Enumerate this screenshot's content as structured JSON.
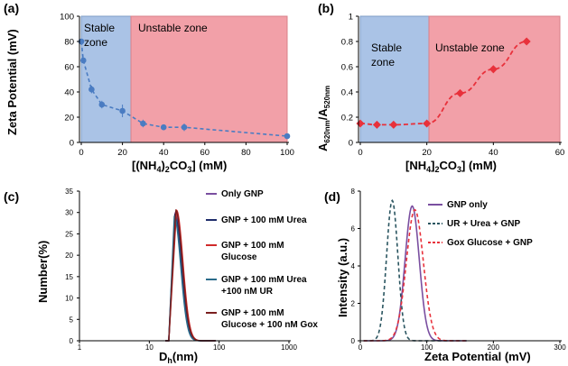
{
  "panels": {
    "a": {
      "label": "(a)"
    },
    "b": {
      "label": "(b)"
    },
    "c": {
      "label": "(c)"
    },
    "d": {
      "label": "(d)"
    }
  },
  "chart_data": [
    {
      "panel": "(a)",
      "type": "line",
      "xlabel": "[(NH4)2CO3] (mM)",
      "ylabel": "Zeta Potential (mV)",
      "xlim": [
        0,
        100
      ],
      "ylim": [
        0,
        100
      ],
      "xticks": [
        "0",
        "20",
        "40",
        "60",
        "80",
        "100"
      ],
      "yticks": [
        "0",
        "20",
        "40",
        "60",
        "80",
        "100"
      ],
      "x": [
        0,
        1,
        5,
        10,
        20,
        30,
        40,
        50,
        100
      ],
      "values": [
        80,
        65,
        42,
        30,
        25,
        15,
        12,
        12,
        5
      ],
      "errors": [
        2,
        2,
        3,
        3,
        5,
        3,
        2,
        3,
        1
      ],
      "zones": [
        {
          "label": "Stable zone",
          "from": 0,
          "to": 23,
          "color": "#aac3e6"
        },
        {
          "label": "Unstable zone",
          "from": 23,
          "to": 100,
          "color": "#f2a0a8"
        }
      ],
      "series_color": "#4a7cc2"
    },
    {
      "panel": "(b)",
      "type": "line",
      "xlabel": "[NH4]2CO3] (mM)",
      "ylabel": "A620nm/A520nm",
      "xlim": [
        0,
        60
      ],
      "ylim": [
        0,
        1
      ],
      "xticks": [
        "0",
        "20",
        "40",
        "60"
      ],
      "yticks": [
        "0",
        "0.2",
        "0.4",
        "0.6",
        "0.8",
        "1"
      ],
      "x": [
        0,
        5,
        10,
        20,
        30,
        40,
        50
      ],
      "values": [
        0.15,
        0.14,
        0.14,
        0.15,
        0.39,
        0.58,
        0.8
      ],
      "zones": [
        {
          "label": "Stable zone",
          "from": 0,
          "to": 21,
          "color": "#aac3e6"
        },
        {
          "label": "Unstable zone",
          "from": 21,
          "to": 60,
          "color": "#f2a0a8"
        }
      ],
      "series_color": "#e8313b"
    },
    {
      "panel": "(c)",
      "type": "line",
      "xlabel": "Dh(nm)",
      "ylabel": "Number(%)",
      "xscale": "log",
      "xlim": [
        1,
        1000
      ],
      "ylim": [
        0,
        35
      ],
      "xticks": [
        "1",
        "10",
        "100",
        "1000"
      ],
      "yticks": [
        "0",
        "5",
        "10",
        "15",
        "20",
        "25",
        "30",
        "35"
      ],
      "series": [
        {
          "name": "Only GNP",
          "color": "#7a4fa0",
          "peak": 23.5,
          "height": 30
        },
        {
          "name": "GNP + 100 mM Urea",
          "color": "#1f2d6b",
          "peak": 23.2,
          "height": 29.5
        },
        {
          "name": "GNP + 100 mM Glucose",
          "color": "#d02a2a",
          "peak": 24.5,
          "height": 30.5
        },
        {
          "name": "GNP + 100 mM Urea +100 nM UR",
          "color": "#2a6b8a",
          "peak": 22.8,
          "height": 29
        },
        {
          "name": "GNP + 100 mM Glucose + 100 nM Gox",
          "color": "#7a1f1f",
          "peak": 24,
          "height": 30.5
        }
      ]
    },
    {
      "panel": "(d)",
      "type": "line",
      "xlabel": "Zeta Potential (mV)",
      "ylabel": "Intensity (a.u.)",
      "xlim": [
        0,
        300
      ],
      "ylim": [
        0,
        8
      ],
      "xticks": [
        "0",
        "100",
        "200",
        "300"
      ],
      "yticks": [
        "0",
        "2",
        "4",
        "6",
        "8"
      ],
      "series": [
        {
          "name": "GNP only",
          "color": "#7a4fa0",
          "peak": 78,
          "height": 7.2,
          "width": 15,
          "dash": "solid"
        },
        {
          "name": "UR + Urea + GNP",
          "color": "#2a5560",
          "peak": 48,
          "height": 7.5,
          "width": 12,
          "dash": "dash"
        },
        {
          "name": "Gox Glucose + GNP",
          "color": "#e8313b",
          "peak": 82,
          "height": 7.0,
          "width": 18,
          "dash": "dash"
        }
      ]
    }
  ],
  "legend_c": [
    [
      "Only GNP"
    ],
    [
      "GNP + 100 mM Urea"
    ],
    [
      "GNP + 100 mM",
      "Glucose"
    ],
    [
      "GNP + 100 mM Urea",
      "+100 nM UR"
    ],
    [
      "GNP + 100 mM",
      "Glucose + 100 nM Gox"
    ]
  ]
}
